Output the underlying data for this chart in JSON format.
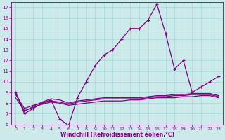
{
  "x": [
    0,
    1,
    2,
    3,
    4,
    5,
    6,
    7,
    8,
    9,
    10,
    11,
    12,
    13,
    14,
    15,
    16,
    17,
    18,
    19,
    20,
    21,
    22,
    23
  ],
  "line_main": [
    9,
    7,
    7.5,
    8,
    8.3,
    6.5,
    5.9,
    8.5,
    10,
    11.5,
    12.5,
    13,
    14,
    15,
    15,
    15.8,
    17.3,
    14.5,
    11.2,
    12,
    9,
    9.5,
    10,
    10.5
  ],
  "line_flat1": [
    9,
    7.2,
    7.7,
    8.1,
    8.4,
    8.3,
    8.0,
    8.2,
    8.3,
    8.4,
    8.5,
    8.5,
    8.5,
    8.5,
    8.5,
    8.6,
    8.7,
    8.7,
    8.8,
    8.8,
    8.9,
    8.9,
    8.9,
    8.7
  ],
  "line_flat2": [
    8.8,
    7.5,
    7.8,
    8.0,
    8.2,
    8.1,
    7.9,
    8.1,
    8.2,
    8.3,
    8.4,
    8.4,
    8.4,
    8.4,
    8.4,
    8.5,
    8.6,
    8.6,
    8.7,
    8.7,
    8.8,
    8.8,
    8.8,
    8.6
  ],
  "line_flat3": [
    8.5,
    7.3,
    7.6,
    7.9,
    8.1,
    8.0,
    7.8,
    7.9,
    8.0,
    8.1,
    8.2,
    8.2,
    8.2,
    8.3,
    8.3,
    8.4,
    8.5,
    8.5,
    8.5,
    8.6,
    8.6,
    8.7,
    8.7,
    8.5
  ],
  "bg_color": "#cceaea",
  "line_color": "#800080",
  "grid_color": "#a8d8d8",
  "xlabel": "Windchill (Refroidissement éolien,°C)",
  "tick_color": "#800080",
  "ylim": [
    6,
    17.5
  ],
  "xlim": [
    -0.5,
    23.5
  ],
  "yticks": [
    6,
    7,
    8,
    9,
    10,
    11,
    12,
    13,
    14,
    15,
    16,
    17
  ],
  "xticks": [
    0,
    1,
    2,
    3,
    4,
    5,
    6,
    7,
    8,
    9,
    10,
    11,
    12,
    13,
    14,
    15,
    16,
    17,
    18,
    19,
    20,
    21,
    22,
    23
  ]
}
